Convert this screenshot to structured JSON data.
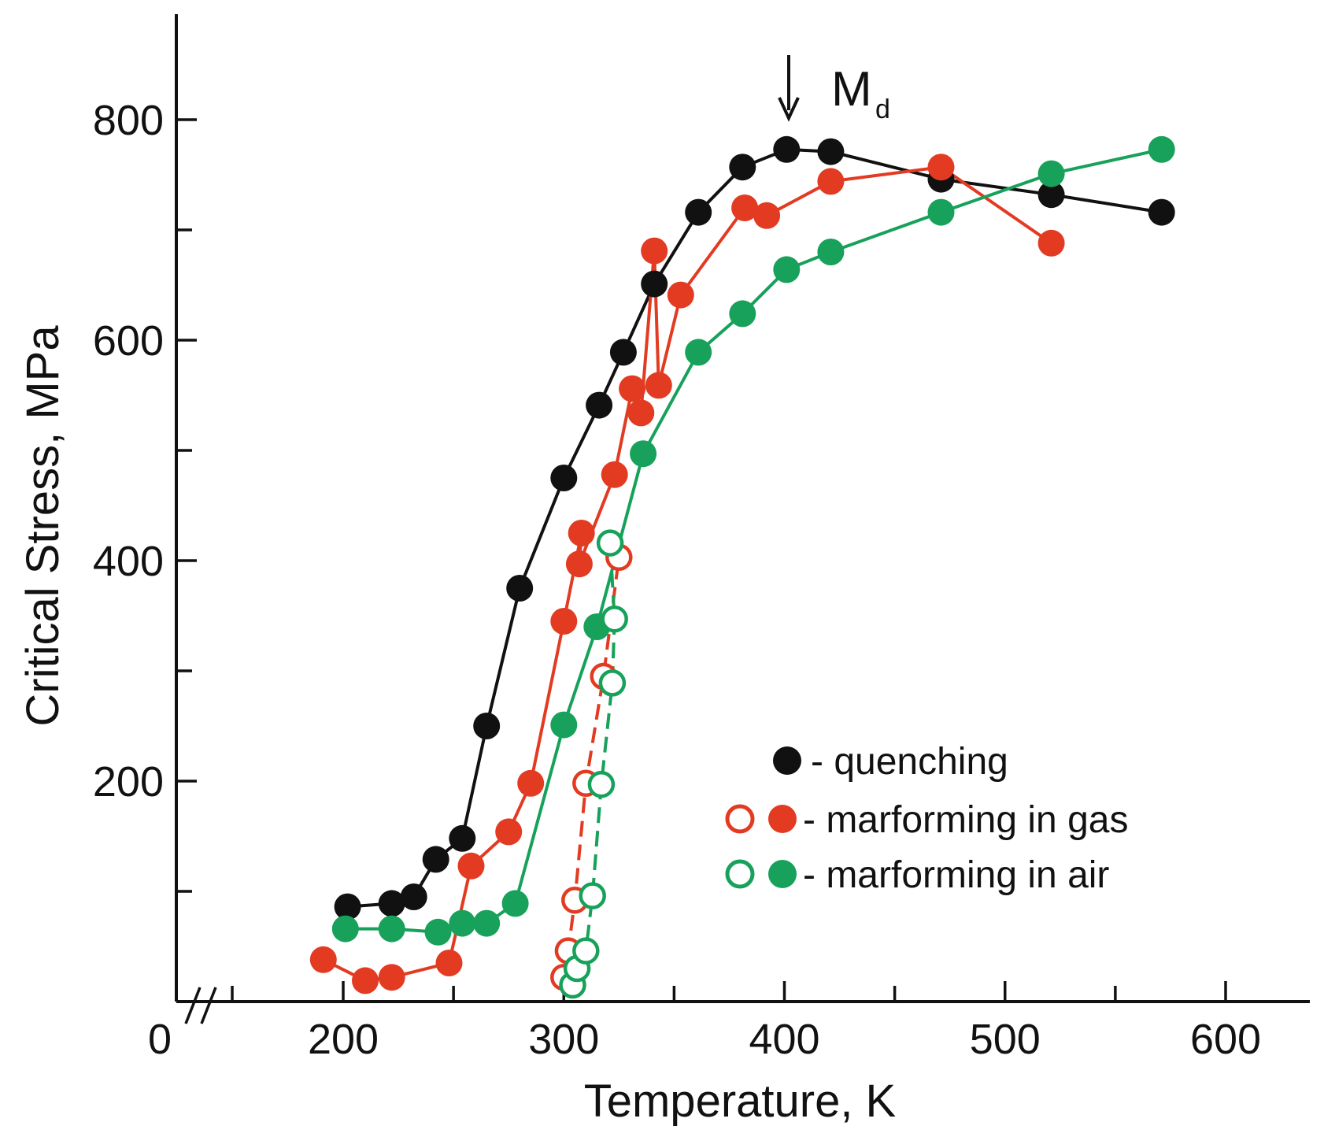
{
  "chart_data": {
    "type": "scatter",
    "title": "",
    "xlabel": "Temperature, K",
    "ylabel": "Critical Stress, MPa",
    "xlim": [
      150,
      635
    ],
    "ylim": [
      0,
      890
    ],
    "x_ticks": [
      200,
      300,
      400,
      500,
      600
    ],
    "x_minor_ticks": [
      250,
      350,
      450,
      550
    ],
    "y_ticks": [
      200,
      400,
      600,
      800
    ],
    "y_minor_ticks": [
      100,
      300,
      500,
      700
    ],
    "origin_label": "0",
    "axis_break": "//",
    "annotation": {
      "text": "M",
      "subscript": "d",
      "x": 400,
      "arrow": "down"
    },
    "legend": [
      {
        "marker": "filled",
        "color": "#111111",
        "label": "- quenching"
      },
      {
        "marker": "open+filled",
        "color": "#e23b22",
        "label": "- marforming in gas"
      },
      {
        "marker": "open+filled",
        "color": "#17a15a",
        "label": "- marforming in air"
      }
    ],
    "series": [
      {
        "name": "quenching",
        "color": "#111111",
        "marker": "filled",
        "line": "solid",
        "points": [
          [
            202,
            86
          ],
          [
            222,
            89
          ],
          [
            232,
            95
          ],
          [
            242,
            129
          ],
          [
            254,
            148
          ],
          [
            265,
            250
          ],
          [
            280,
            375
          ],
          [
            300,
            475
          ],
          [
            316,
            541
          ],
          [
            327,
            589
          ],
          [
            341,
            651
          ],
          [
            361,
            716
          ],
          [
            381,
            757
          ],
          [
            401,
            773
          ],
          [
            421,
            771
          ],
          [
            471,
            746
          ],
          [
            521,
            732
          ],
          [
            571,
            716
          ]
        ]
      },
      {
        "name": "marforming in gas",
        "color": "#e23b22",
        "marker": "filled",
        "line": "solid",
        "points": [
          [
            191,
            38
          ],
          [
            210,
            19
          ],
          [
            222,
            22
          ],
          [
            248,
            35
          ],
          [
            258,
            123
          ],
          [
            275,
            154
          ],
          [
            285,
            198
          ],
          [
            300,
            345
          ],
          [
            308,
            425
          ],
          [
            307,
            397
          ],
          [
            323,
            478
          ],
          [
            331,
            556
          ],
          [
            335,
            534
          ],
          [
            341,
            681
          ],
          [
            343,
            559
          ],
          [
            353,
            641
          ],
          [
            382,
            720
          ],
          [
            392,
            713
          ],
          [
            421,
            744
          ],
          [
            471,
            757
          ],
          [
            521,
            688
          ]
        ]
      },
      {
        "name": "marforming in gas (open)",
        "color": "#e23b22",
        "marker": "open",
        "line": "dashed",
        "points": [
          [
            300,
            22
          ],
          [
            302,
            46
          ],
          [
            305,
            92
          ],
          [
            310,
            198
          ],
          [
            318,
            295
          ],
          [
            325,
            403
          ]
        ]
      },
      {
        "name": "marforming in air",
        "color": "#17a15a",
        "marker": "filled",
        "line": "solid",
        "points": [
          [
            201,
            66
          ],
          [
            222,
            66
          ],
          [
            243,
            63
          ],
          [
            254,
            71
          ],
          [
            265,
            71
          ],
          [
            278,
            89
          ],
          [
            300,
            251
          ],
          [
            315,
            340
          ],
          [
            336,
            497
          ],
          [
            361,
            589
          ],
          [
            381,
            624
          ],
          [
            401,
            664
          ],
          [
            421,
            680
          ],
          [
            471,
            716
          ],
          [
            521,
            751
          ],
          [
            571,
            773
          ]
        ]
      },
      {
        "name": "marforming in air (open)",
        "color": "#17a15a",
        "marker": "open",
        "line": "dashed",
        "points": [
          [
            304,
            15
          ],
          [
            306,
            30
          ],
          [
            310,
            46
          ],
          [
            313,
            96
          ],
          [
            317,
            197
          ],
          [
            322,
            289
          ],
          [
            323,
            347
          ],
          [
            321,
            416
          ]
        ]
      }
    ]
  }
}
